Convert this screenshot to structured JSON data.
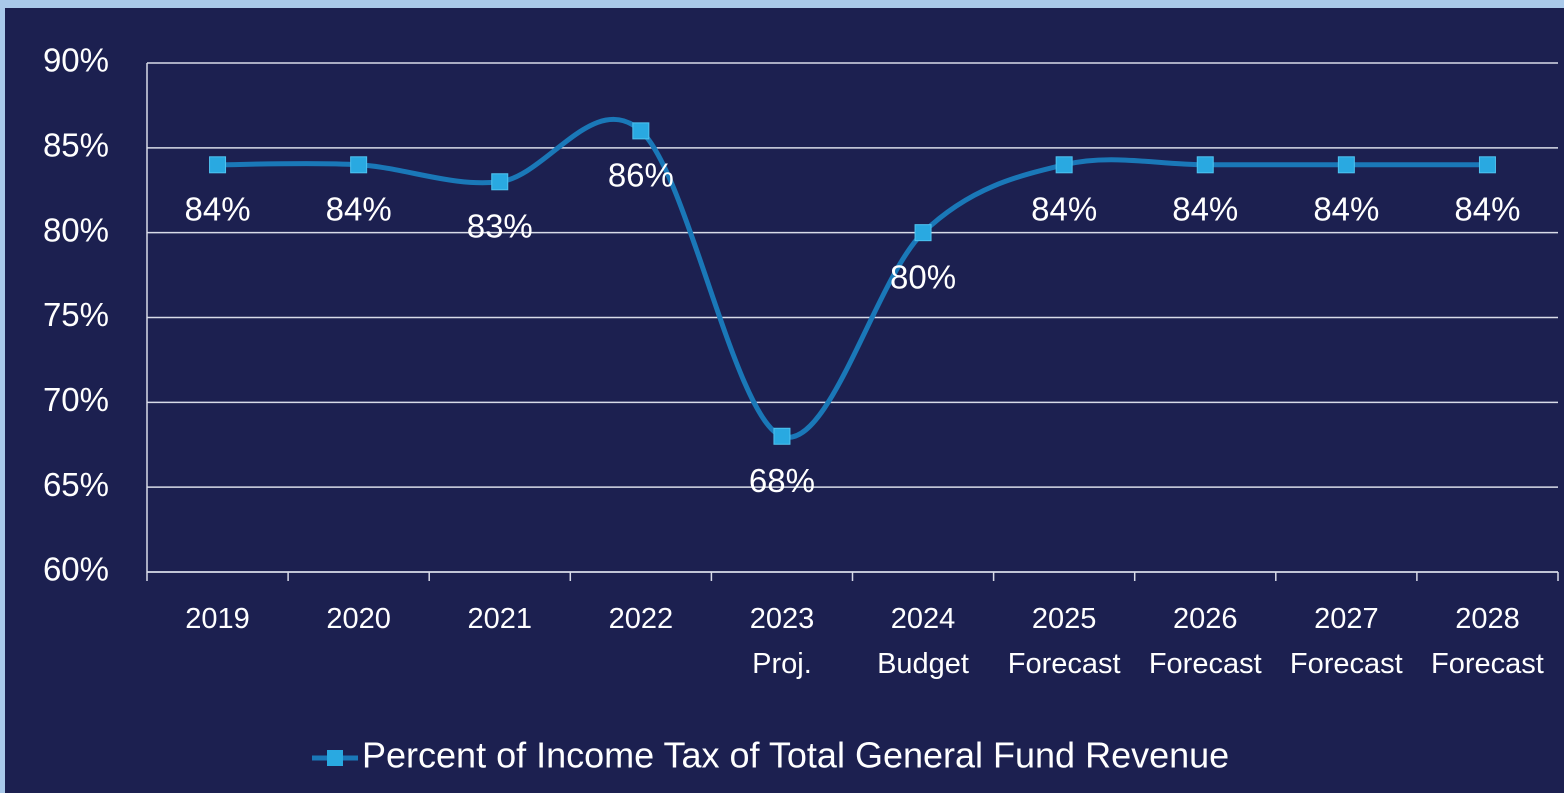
{
  "chart_data": {
    "type": "line",
    "categories": [
      "2019",
      "2020",
      "2021",
      "2022",
      "2023\nProj.",
      "2024\nBudget",
      "2025\nForecast",
      "2026\nForecast",
      "2027\nForecast",
      "2028\nForecast"
    ],
    "series": [
      {
        "name": "Percent of Income Tax of Total General Fund Revenue",
        "color": "#1a78b8",
        "marker_color": "#29a9e1",
        "values": [
          84,
          84,
          83,
          86,
          68,
          80,
          84,
          84,
          84,
          84
        ],
        "value_labels": [
          "84%",
          "84%",
          "83%",
          "86%",
          "68%",
          "80%",
          "84%",
          "84%",
          "84%",
          "84%"
        ]
      }
    ],
    "ylim": [
      60,
      90
    ],
    "yticks": [
      {
        "value": 60,
        "label": "60%"
      },
      {
        "value": 65,
        "label": "65%"
      },
      {
        "value": 70,
        "label": "70%"
      },
      {
        "value": 75,
        "label": "75%"
      },
      {
        "value": 80,
        "label": "80%"
      },
      {
        "value": 85,
        "label": "85%"
      },
      {
        "value": 90,
        "label": "90%"
      }
    ],
    "grid": true,
    "smooth": true,
    "legend": "bottom"
  }
}
